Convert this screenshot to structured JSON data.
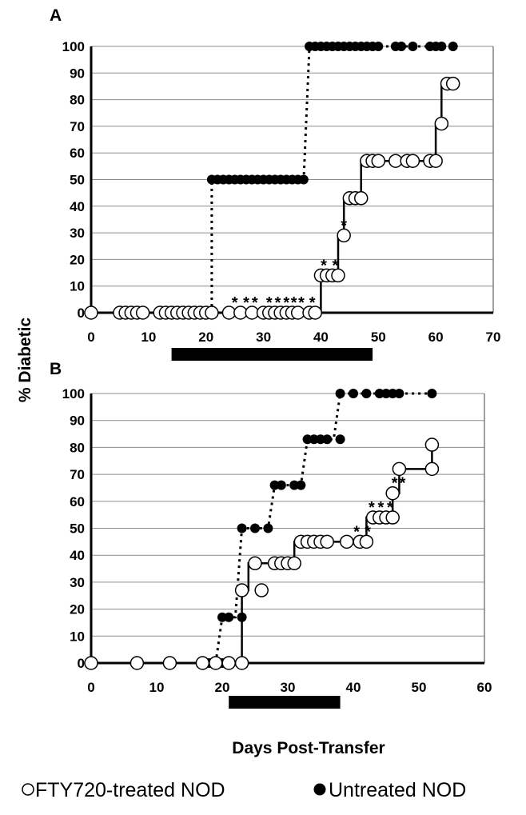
{
  "x_axis_title": "Days Post-Transfer",
  "y_axis_title": "% Diabetic",
  "legend": {
    "fty720": "FTY720-treated NOD",
    "untreated": "Untreated NOD"
  },
  "colors": {
    "treated_fill": "#ffffff",
    "untreated_fill": "#000000",
    "grid": "#8c8c8c",
    "frame": "#808080"
  },
  "chart_data": [
    {
      "type": "line",
      "panel_label": "A",
      "xlim": [
        0,
        70
      ],
      "xticks": [
        0,
        10,
        20,
        30,
        40,
        50,
        60,
        70
      ],
      "ylim": [
        0,
        100
      ],
      "yticks": [
        0,
        10,
        20,
        30,
        40,
        50,
        60,
        70,
        80,
        90,
        100
      ],
      "grid": true,
      "treatment_bar": [
        14,
        49
      ],
      "series": [
        {
          "name": "FTY720-treated NOD",
          "marker": "open-circle",
          "line": "solid",
          "points": [
            [
              0,
              0
            ],
            [
              5,
              0
            ],
            [
              6,
              0
            ],
            [
              7,
              0
            ],
            [
              8,
              0
            ],
            [
              9,
              0
            ],
            [
              12,
              0
            ],
            [
              13,
              0
            ],
            [
              14,
              0
            ],
            [
              15,
              0
            ],
            [
              16,
              0
            ],
            [
              17,
              0
            ],
            [
              18,
              0
            ],
            [
              19,
              0
            ],
            [
              20,
              0
            ],
            [
              21,
              0
            ],
            [
              24,
              0
            ],
            [
              26,
              0
            ],
            [
              28,
              0
            ],
            [
              30,
              0
            ],
            [
              31,
              0
            ],
            [
              32,
              0
            ],
            [
              33,
              0
            ],
            [
              34,
              0
            ],
            [
              35,
              0
            ],
            [
              36,
              0
            ],
            [
              38,
              0
            ],
            [
              39,
              0
            ],
            [
              40,
              14
            ],
            [
              41,
              14
            ],
            [
              42,
              14
            ],
            [
              43,
              14
            ],
            [
              44,
              29
            ],
            [
              45,
              43
            ],
            [
              46,
              43
            ],
            [
              47,
              43
            ],
            [
              48,
              57
            ],
            [
              49,
              57
            ],
            [
              50,
              57
            ],
            [
              53,
              57
            ],
            [
              55,
              57
            ],
            [
              56,
              57
            ],
            [
              59,
              57
            ],
            [
              60,
              57
            ],
            [
              61,
              71
            ],
            [
              62,
              86
            ],
            [
              63,
              86
            ]
          ],
          "step_line": [
            [
              0,
              0
            ],
            [
              40,
              0
            ],
            [
              40,
              14
            ],
            [
              43,
              14
            ],
            [
              43,
              29
            ],
            [
              44,
              29
            ],
            [
              44,
              43
            ],
            [
              47,
              43
            ],
            [
              47,
              57
            ],
            [
              60,
              57
            ],
            [
              60,
              71
            ],
            [
              61,
              71
            ],
            [
              61,
              86
            ],
            [
              62,
              86
            ]
          ]
        },
        {
          "name": "Untreated NOD",
          "marker": "filled-circle",
          "line": "dotted",
          "points": [
            [
              0,
              0
            ],
            [
              5,
              0
            ],
            [
              6,
              0
            ],
            [
              7,
              0
            ],
            [
              8,
              0
            ],
            [
              9,
              0
            ],
            [
              12,
              0
            ],
            [
              13,
              0
            ],
            [
              14,
              0
            ],
            [
              15,
              0
            ],
            [
              16,
              0
            ],
            [
              17,
              0
            ],
            [
              18,
              0
            ],
            [
              19,
              0
            ],
            [
              20,
              0
            ],
            [
              21,
              0
            ],
            [
              21,
              50
            ],
            [
              22,
              50
            ],
            [
              23,
              50
            ],
            [
              24,
              50
            ],
            [
              25,
              50
            ],
            [
              26,
              50
            ],
            [
              27,
              50
            ],
            [
              28,
              50
            ],
            [
              29,
              50
            ],
            [
              30,
              50
            ],
            [
              31,
              50
            ],
            [
              32,
              50
            ],
            [
              33,
              50
            ],
            [
              34,
              50
            ],
            [
              35,
              50
            ],
            [
              36,
              50
            ],
            [
              37,
              50
            ],
            [
              38,
              100
            ],
            [
              39,
              100
            ],
            [
              40,
              100
            ],
            [
              41,
              100
            ],
            [
              42,
              100
            ],
            [
              43,
              100
            ],
            [
              44,
              100
            ],
            [
              45,
              100
            ],
            [
              46,
              100
            ],
            [
              47,
              100
            ],
            [
              48,
              100
            ],
            [
              49,
              100
            ],
            [
              50,
              100
            ],
            [
              53,
              100
            ],
            [
              54,
              100
            ],
            [
              56,
              100
            ],
            [
              59,
              100
            ],
            [
              60,
              100
            ],
            [
              61,
              100
            ],
            [
              63,
              100
            ]
          ],
          "step_line": [
            [
              21,
              0
            ],
            [
              21,
              50
            ],
            [
              37,
              50
            ],
            [
              38,
              100
            ],
            [
              63,
              100
            ]
          ]
        }
      ],
      "annotations": [
        {
          "text": "*",
          "x": 25,
          "y": 0
        },
        {
          "text": "*",
          "x": 27,
          "y": 0
        },
        {
          "text": "*",
          "x": 28.5,
          "y": 0
        },
        {
          "text": "*",
          "x": 31,
          "y": 0
        },
        {
          "text": "*",
          "x": 32.5,
          "y": 0
        },
        {
          "text": "*",
          "x": 34,
          "y": 0
        },
        {
          "text": "*",
          "x": 35.3,
          "y": 0
        },
        {
          "text": "*",
          "x": 36.6,
          "y": 0
        },
        {
          "text": "*",
          "x": 38.5,
          "y": 0
        },
        {
          "text": "*",
          "x": 40.5,
          "y": 14
        },
        {
          "text": "*",
          "x": 42.5,
          "y": 14
        },
        {
          "text": "*",
          "x": 44,
          "y": 29
        }
      ]
    },
    {
      "type": "line",
      "panel_label": "B",
      "xlim": [
        0,
        60
      ],
      "xticks": [
        0,
        10,
        20,
        30,
        40,
        50,
        60
      ],
      "ylim": [
        0,
        100
      ],
      "yticks": [
        0,
        10,
        20,
        30,
        40,
        50,
        60,
        70,
        80,
        90,
        100
      ],
      "grid": true,
      "treatment_bar": [
        21,
        38
      ],
      "series": [
        {
          "name": "FTY720-treated NOD",
          "marker": "open-circle",
          "line": "solid",
          "points": [
            [
              0,
              0
            ],
            [
              7,
              0
            ],
            [
              12,
              0
            ],
            [
              17,
              0
            ],
            [
              19,
              0
            ],
            [
              21,
              0
            ],
            [
              23,
              0
            ],
            [
              23,
              27
            ],
            [
              25,
              37
            ],
            [
              26,
              27
            ],
            [
              28,
              37
            ],
            [
              29,
              37
            ],
            [
              30,
              37
            ],
            [
              31,
              37
            ],
            [
              32,
              45
            ],
            [
              33,
              45
            ],
            [
              34,
              45
            ],
            [
              35,
              45
            ],
            [
              36,
              45
            ],
            [
              39,
              45
            ],
            [
              41,
              45
            ],
            [
              42,
              45
            ],
            [
              43,
              54
            ],
            [
              44,
              54
            ],
            [
              45,
              54
            ],
            [
              46,
              54
            ],
            [
              46,
              63
            ],
            [
              47,
              72
            ],
            [
              52,
              72
            ],
            [
              52,
              81
            ]
          ],
          "step_line": [
            [
              0,
              0
            ],
            [
              23,
              0
            ],
            [
              23,
              27
            ],
            [
              24,
              27
            ],
            [
              24,
              37
            ],
            [
              31,
              37
            ],
            [
              31,
              45
            ],
            [
              42,
              45
            ],
            [
              42,
              54
            ],
            [
              46,
              54
            ],
            [
              46,
              63
            ],
            [
              47,
              63
            ],
            [
              47,
              72
            ],
            [
              52,
              72
            ],
            [
              52,
              81
            ]
          ]
        },
        {
          "name": "Untreated NOD",
          "marker": "filled-circle",
          "line": "dotted",
          "points": [
            [
              0,
              0
            ],
            [
              7,
              0
            ],
            [
              12,
              0
            ],
            [
              17,
              0
            ],
            [
              18,
              0
            ],
            [
              19,
              0
            ],
            [
              20,
              0
            ],
            [
              20,
              17
            ],
            [
              21,
              17
            ],
            [
              23,
              17
            ],
            [
              23,
              50
            ],
            [
              25,
              50
            ],
            [
              27,
              50
            ],
            [
              28,
              66
            ],
            [
              29,
              66
            ],
            [
              31,
              66
            ],
            [
              32,
              66
            ],
            [
              33,
              83
            ],
            [
              34,
              83
            ],
            [
              35,
              83
            ],
            [
              36,
              83
            ],
            [
              38,
              83
            ],
            [
              38,
              100
            ],
            [
              40,
              100
            ],
            [
              42,
              100
            ],
            [
              44,
              100
            ],
            [
              45,
              100
            ],
            [
              46,
              100
            ],
            [
              47,
              100
            ],
            [
              52,
              100
            ]
          ],
          "step_line": [
            [
              19,
              0
            ],
            [
              20,
              17
            ],
            [
              22,
              17
            ],
            [
              23,
              50
            ],
            [
              27,
              50
            ],
            [
              28,
              66
            ],
            [
              32,
              66
            ],
            [
              33,
              83
            ],
            [
              37,
              83
            ],
            [
              38,
              100
            ],
            [
              52,
              100
            ]
          ]
        }
      ],
      "annotations": [
        {
          "text": "*",
          "x": 40.5,
          "y": 45
        },
        {
          "text": "*",
          "x": 42.2,
          "y": 45
        },
        {
          "text": "*",
          "x": 42.8,
          "y": 54
        },
        {
          "text": "*",
          "x": 44.2,
          "y": 54
        },
        {
          "text": "*",
          "x": 45.6,
          "y": 54
        },
        {
          "text": "*",
          "x": 46.3,
          "y": 63
        },
        {
          "text": "*",
          "x": 47.5,
          "y": 63
        }
      ]
    }
  ]
}
